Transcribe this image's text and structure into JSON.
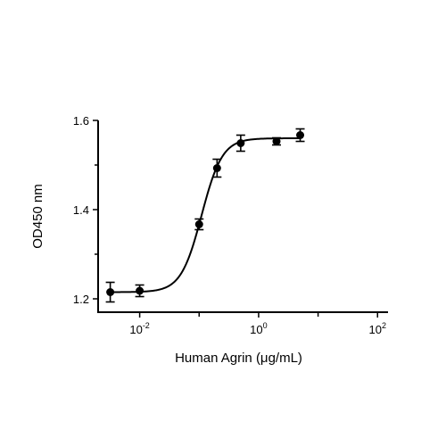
{
  "chart_data": {
    "type": "scatter",
    "xlabel": "Human Agrin (μg/mL)",
    "ylabel": "OD450 nm",
    "xscale": "log",
    "xlim": [
      0.002,
      150
    ],
    "ylim": [
      1.17,
      1.6
    ],
    "x_ticks": [
      {
        "value": 0.01,
        "base": "10",
        "exp": "-2"
      },
      {
        "value": 1,
        "base": "10",
        "exp": "0"
      },
      {
        "value": 100,
        "base": "10",
        "exp": "2"
      }
    ],
    "y_ticks": [
      {
        "value": 1.2,
        "label": "1.2"
      },
      {
        "value": 1.4,
        "label": "1.4"
      },
      {
        "value": 1.6,
        "label": "1.6"
      }
    ],
    "grid": false,
    "legend": "none",
    "series": [
      {
        "points": [
          {
            "x": 0.0032,
            "y": 1.215,
            "err": 0.022
          },
          {
            "x": 0.01,
            "y": 1.218,
            "err": 0.013
          },
          {
            "x": 0.1,
            "y": 1.367,
            "err": 0.012
          },
          {
            "x": 0.2,
            "y": 1.493,
            "err": 0.02
          },
          {
            "x": 0.5,
            "y": 1.549,
            "err": 0.018
          },
          {
            "x": 2,
            "y": 1.553,
            "err": 0.008
          },
          {
            "x": 5,
            "y": 1.567,
            "err": 0.014
          }
        ],
        "fit": {
          "model": "4PL",
          "bottom": 1.215,
          "top": 1.56,
          "ec50": 0.11,
          "hill": 2.5
        }
      }
    ]
  }
}
